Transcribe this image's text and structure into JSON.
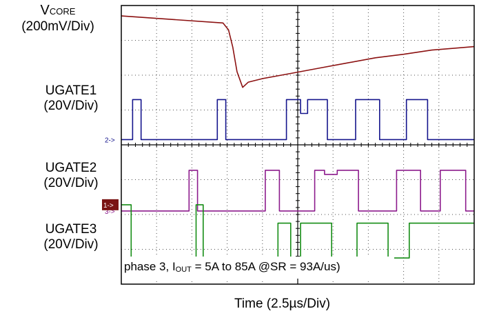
{
  "chart_data": {
    "type": "line",
    "title": "",
    "xlabel": "Time (2.5µs/Div)",
    "grid": true,
    "grid_divisions": {
      "x": 10,
      "y": 8
    },
    "annotation": "phase 3, I_OUT = 5A to 85A @SR = 93A/us)",
    "series": [
      {
        "name": "VCORE",
        "scale": "(200mV/Div)",
        "color": "#8b1010",
        "marker": "",
        "x": [
          0,
          7.2,
          7.6,
          7.9,
          8.2,
          8.6,
          9.0,
          10.0,
          12.0,
          14.0,
          16.0,
          18.0,
          20.0,
          22.0,
          25.0
        ],
        "y": [
          7.7,
          7.5,
          7.3,
          6.8,
          6.1,
          5.65,
          5.8,
          5.9,
          6.05,
          6.2,
          6.35,
          6.5,
          6.6,
          6.72,
          6.82
        ]
      },
      {
        "name": "UGATE1",
        "scale": "(20V/Div)",
        "color": "#14148c",
        "marker": "2->",
        "x": [
          0,
          0.8,
          0.8,
          1.4,
          1.4,
          6.8,
          6.8,
          7.4,
          7.4,
          11.7,
          11.7,
          12.7,
          12.7,
          13.2,
          13.2,
          14.6,
          14.6,
          16.6,
          16.6,
          18.3,
          18.3,
          20.2,
          20.2,
          21.7,
          21.7,
          25
        ],
        "y": [
          4.15,
          4.15,
          5.3,
          5.3,
          4.15,
          4.15,
          5.3,
          5.3,
          4.15,
          4.15,
          5.3,
          5.3,
          4.9,
          4.9,
          5.3,
          5.3,
          4.15,
          4.15,
          5.3,
          5.3,
          4.15,
          4.15,
          5.3,
          5.3,
          4.15,
          4.15
        ]
      },
      {
        "name": "UGATE2",
        "scale": "(20V/Div)",
        "color": "#8c1a8c",
        "marker": "3->",
        "x": [
          0,
          4.8,
          4.8,
          5.4,
          5.4,
          10.2,
          10.2,
          11.2,
          11.2,
          13.7,
          13.7,
          14.4,
          14.4,
          15.3,
          15.3,
          16.8,
          16.8,
          19.5,
          19.5,
          21.2,
          21.2,
          22.6,
          22.6,
          24.4,
          24.4,
          25
        ],
        "y": [
          2.1,
          2.1,
          3.27,
          3.27,
          2.1,
          2.1,
          3.27,
          3.27,
          2.1,
          2.1,
          3.27,
          3.27,
          3.15,
          3.15,
          3.27,
          3.27,
          2.1,
          2.1,
          3.27,
          3.27,
          2.1,
          2.1,
          3.27,
          3.27,
          2.1,
          2.1
        ]
      },
      {
        "name": "UGATE3",
        "scale": "(20V/Div)",
        "color": "#148c14",
        "marker": "1->",
        "x": [
          0,
          0.7,
          0.7,
          5.3,
          5.3,
          5.8,
          5.8,
          11.1,
          11.1,
          12.0,
          12.0,
          12.7,
          12.7,
          14.9,
          14.9,
          16.7,
          16.7,
          18.9,
          18.9,
          20.4,
          20.4,
          25
        ],
        "y": [
          2.28,
          2.28,
          0.75,
          0.75,
          2.28,
          2.28,
          0.75,
          0.75,
          1.75,
          1.75,
          0.75,
          0.75,
          1.75,
          1.75,
          0.75,
          0.75,
          1.75,
          1.75,
          0.75,
          0.75,
          1.75,
          1.75
        ]
      }
    ]
  }
}
